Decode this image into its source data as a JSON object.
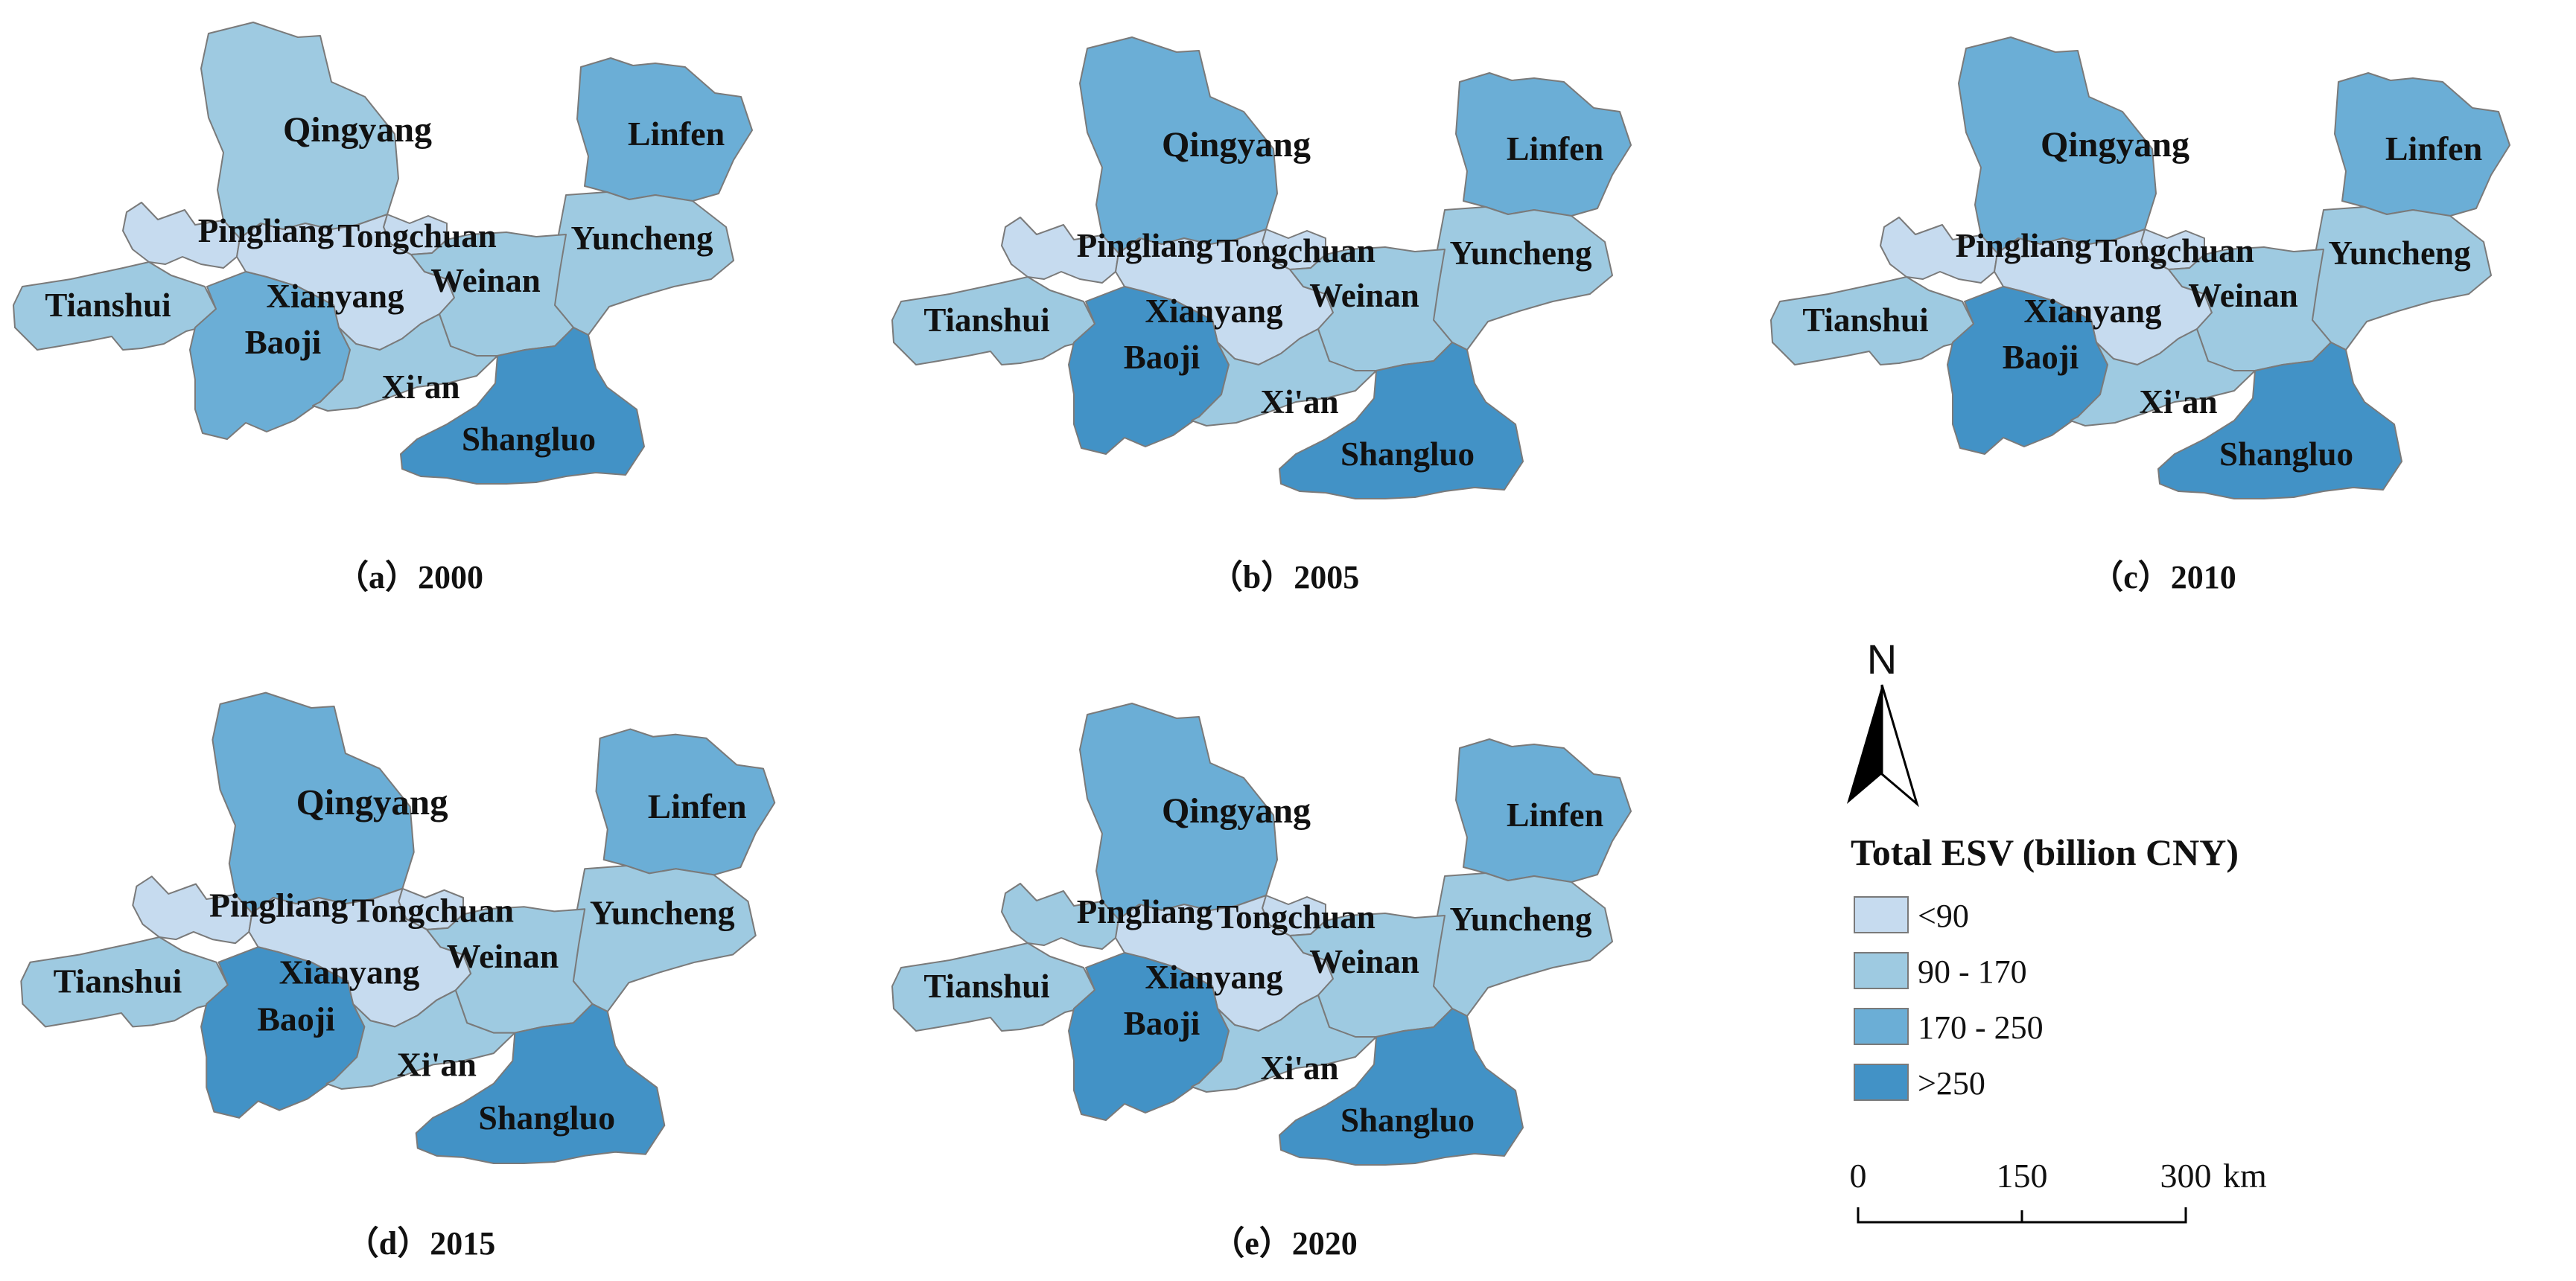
{
  "colors": {
    "c1": "#c6dbef",
    "c2": "#9ecae1",
    "c3": "#6baed6",
    "c4": "#4292c6"
  },
  "panels": [
    {
      "caption": "（a）2000",
      "classes": {
        "Qingyang": "c2",
        "Linfen": "c3",
        "Pingliang": "c1",
        "Tongchuan": "c1",
        "Yuncheng": "c2",
        "Tianshui": "c2",
        "Xianyang": "c1",
        "Weinan": "c2",
        "Baoji": "c3",
        "Xi'an": "c2",
        "Shangluo": "c4"
      }
    },
    {
      "caption": "（b）2005",
      "classes": {
        "Qingyang": "c3",
        "Linfen": "c3",
        "Pingliang": "c1",
        "Tongchuan": "c1",
        "Yuncheng": "c2",
        "Tianshui": "c2",
        "Xianyang": "c1",
        "Weinan": "c2",
        "Baoji": "c4",
        "Xi'an": "c2",
        "Shangluo": "c4"
      }
    },
    {
      "caption": "（c）2010",
      "classes": {
        "Qingyang": "c3",
        "Linfen": "c3",
        "Pingliang": "c1",
        "Tongchuan": "c1",
        "Yuncheng": "c2",
        "Tianshui": "c2",
        "Xianyang": "c1",
        "Weinan": "c2",
        "Baoji": "c4",
        "Xi'an": "c2",
        "Shangluo": "c4"
      }
    },
    {
      "caption": "（d）2015",
      "classes": {
        "Qingyang": "c3",
        "Linfen": "c3",
        "Pingliang": "c1",
        "Tongchuan": "c1",
        "Yuncheng": "c2",
        "Tianshui": "c2",
        "Xianyang": "c1",
        "Weinan": "c2",
        "Baoji": "c4",
        "Xi'an": "c2",
        "Shangluo": "c4"
      }
    },
    {
      "caption": "（e）2020",
      "classes": {
        "Qingyang": "c3",
        "Linfen": "c3",
        "Pingliang": "c2",
        "Tongchuan": "c1",
        "Yuncheng": "c2",
        "Tianshui": "c2",
        "Xianyang": "c1",
        "Weinan": "c2",
        "Baoji": "c4",
        "Xi'an": "c2",
        "Shangluo": "c4"
      }
    }
  ],
  "regions": [
    "Qingyang",
    "Linfen",
    "Pingliang",
    "Tongchuan",
    "Yuncheng",
    "Tianshui",
    "Xianyang",
    "Weinan",
    "Baoji",
    "Xi'an",
    "Shangluo"
  ],
  "legend": {
    "title": "Total ESV (billion CNY)",
    "items": [
      {
        "label": "<90",
        "cls": "c1"
      },
      {
        "label": "90 - 170",
        "cls": "c2"
      },
      {
        "label": "170 - 250",
        "cls": "c3"
      },
      {
        "label": ">250",
        "cls": "c4"
      }
    ]
  },
  "north_arrow": {
    "label": "N"
  },
  "scale_bar": {
    "ticks": [
      "0",
      "150",
      "300"
    ],
    "unit": "km"
  }
}
